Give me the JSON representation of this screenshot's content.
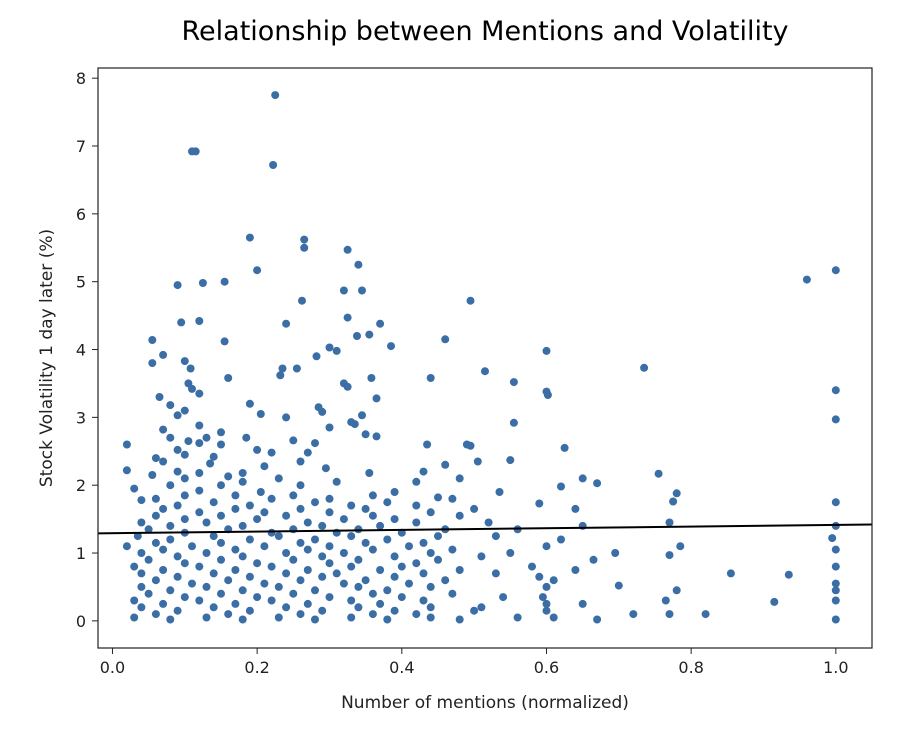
{
  "chart_data": {
    "type": "scatter",
    "title": "Relationship between Mentions and Volatility",
    "xlabel": "Number of mentions (normalized)",
    "ylabel": "Stock Volatility 1 day later (%)",
    "xlim": [
      -0.02,
      1.05
    ],
    "ylim": [
      -0.4,
      8.15
    ],
    "xticks": [
      0.0,
      0.2,
      0.4,
      0.6,
      0.8,
      1.0
    ],
    "xtick_labels": [
      "0.0",
      "0.2",
      "0.4",
      "0.6",
      "0.8",
      "1.0"
    ],
    "yticks": [
      0,
      1,
      2,
      3,
      4,
      5,
      6,
      7,
      8
    ],
    "ytick_labels": [
      "0",
      "1",
      "2",
      "3",
      "4",
      "5",
      "6",
      "7",
      "8"
    ],
    "grid": false,
    "point_color": "#3a6ea5",
    "trendline": {
      "color": "#000000",
      "x": [
        -0.02,
        1.05
      ],
      "y": [
        1.29,
        1.42
      ]
    },
    "points": [
      [
        0.225,
        7.75
      ],
      [
        0.11,
        6.92
      ],
      [
        0.115,
        6.92
      ],
      [
        0.222,
        6.72
      ],
      [
        0.19,
        5.65
      ],
      [
        0.265,
        5.62
      ],
      [
        0.265,
        5.5
      ],
      [
        0.325,
        5.47
      ],
      [
        0.34,
        5.25
      ],
      [
        0.2,
        5.17
      ],
      [
        1.0,
        5.17
      ],
      [
        0.96,
        5.03
      ],
      [
        0.155,
        5.0
      ],
      [
        0.125,
        4.98
      ],
      [
        0.09,
        4.95
      ],
      [
        0.32,
        4.87
      ],
      [
        0.345,
        4.87
      ],
      [
        0.262,
        4.72
      ],
      [
        0.495,
        4.72
      ],
      [
        0.325,
        4.47
      ],
      [
        0.12,
        4.42
      ],
      [
        0.095,
        4.4
      ],
      [
        0.24,
        4.38
      ],
      [
        0.37,
        4.38
      ],
      [
        0.355,
        4.22
      ],
      [
        0.338,
        4.2
      ],
      [
        0.46,
        4.15
      ],
      [
        0.055,
        4.14
      ],
      [
        0.155,
        4.12
      ],
      [
        0.385,
        4.05
      ],
      [
        0.3,
        4.03
      ],
      [
        0.31,
        3.98
      ],
      [
        0.6,
        3.98
      ],
      [
        0.07,
        3.92
      ],
      [
        0.282,
        3.9
      ],
      [
        0.1,
        3.83
      ],
      [
        0.055,
        3.8
      ],
      [
        0.108,
        3.72
      ],
      [
        0.235,
        3.72
      ],
      [
        0.255,
        3.72
      ],
      [
        0.735,
        3.73
      ],
      [
        0.515,
        3.68
      ],
      [
        0.232,
        3.62
      ],
      [
        0.16,
        3.58
      ],
      [
        0.358,
        3.58
      ],
      [
        0.44,
        3.58
      ],
      [
        0.105,
        3.5
      ],
      [
        0.32,
        3.5
      ],
      [
        0.325,
        3.45
      ],
      [
        0.555,
        3.52
      ],
      [
        0.11,
        3.42
      ],
      [
        0.6,
        3.38
      ],
      [
        0.12,
        3.35
      ],
      [
        1.0,
        3.4
      ],
      [
        0.602,
        3.33
      ],
      [
        0.065,
        3.3
      ],
      [
        0.365,
        3.28
      ],
      [
        0.19,
        3.2
      ],
      [
        0.08,
        3.18
      ],
      [
        0.285,
        3.15
      ],
      [
        0.1,
        3.1
      ],
      [
        0.29,
        3.08
      ],
      [
        0.205,
        3.05
      ],
      [
        0.09,
        3.03
      ],
      [
        0.345,
        3.03
      ],
      [
        0.24,
        3.0
      ],
      [
        0.555,
        2.92
      ],
      [
        1.0,
        2.97
      ],
      [
        0.33,
        2.93
      ],
      [
        0.335,
        2.9
      ],
      [
        0.12,
        2.88
      ],
      [
        0.3,
        2.85
      ],
      [
        0.07,
        2.82
      ],
      [
        0.15,
        2.78
      ],
      [
        0.35,
        2.75
      ],
      [
        0.365,
        2.72
      ],
      [
        0.08,
        2.7
      ],
      [
        0.13,
        2.7
      ],
      [
        0.185,
        2.7
      ],
      [
        0.25,
        2.66
      ],
      [
        0.105,
        2.65
      ],
      [
        0.12,
        2.62
      ],
      [
        0.15,
        2.6
      ],
      [
        0.28,
        2.62
      ],
      [
        0.02,
        2.6
      ],
      [
        0.49,
        2.6
      ],
      [
        0.495,
        2.58
      ],
      [
        0.435,
        2.6
      ],
      [
        0.625,
        2.55
      ],
      [
        0.09,
        2.52
      ],
      [
        0.2,
        2.52
      ],
      [
        0.22,
        2.48
      ],
      [
        0.27,
        2.48
      ],
      [
        0.1,
        2.45
      ],
      [
        0.14,
        2.42
      ],
      [
        0.06,
        2.4
      ],
      [
        0.07,
        2.35
      ],
      [
        0.26,
        2.35
      ],
      [
        0.505,
        2.35
      ],
      [
        0.55,
        2.37
      ],
      [
        0.135,
        2.32
      ],
      [
        0.46,
        2.3
      ],
      [
        0.21,
        2.28
      ],
      [
        0.295,
        2.25
      ],
      [
        0.02,
        2.22
      ],
      [
        0.09,
        2.2
      ],
      [
        0.12,
        2.18
      ],
      [
        0.18,
        2.18
      ],
      [
        0.355,
        2.18
      ],
      [
        0.43,
        2.2
      ],
      [
        0.755,
        2.17
      ],
      [
        0.055,
        2.15
      ],
      [
        0.16,
        2.13
      ],
      [
        0.1,
        2.1
      ],
      [
        0.23,
        2.1
      ],
      [
        0.48,
        2.1
      ],
      [
        0.65,
        2.1
      ],
      [
        0.18,
        2.05
      ],
      [
        0.31,
        2.05
      ],
      [
        0.42,
        2.05
      ],
      [
        0.67,
        2.03
      ],
      [
        0.08,
        2.0
      ],
      [
        0.15,
        2.0
      ],
      [
        0.26,
        2.0
      ],
      [
        0.62,
        1.98
      ],
      [
        0.03,
        1.95
      ],
      [
        0.12,
        1.92
      ],
      [
        0.205,
        1.9
      ],
      [
        0.39,
        1.9
      ],
      [
        0.535,
        1.9
      ],
      [
        0.78,
        1.88
      ],
      [
        0.1,
        1.85
      ],
      [
        0.17,
        1.85
      ],
      [
        0.25,
        1.85
      ],
      [
        0.36,
        1.85
      ],
      [
        0.45,
        1.82
      ],
      [
        0.06,
        1.8
      ],
      [
        0.22,
        1.8
      ],
      [
        0.3,
        1.8
      ],
      [
        0.47,
        1.8
      ],
      [
        0.04,
        1.78
      ],
      [
        0.14,
        1.75
      ],
      [
        0.28,
        1.75
      ],
      [
        0.38,
        1.75
      ],
      [
        0.59,
        1.73
      ],
      [
        0.775,
        1.76
      ],
      [
        1.0,
        1.75
      ],
      [
        0.09,
        1.7
      ],
      [
        0.19,
        1.7
      ],
      [
        0.33,
        1.7
      ],
      [
        0.42,
        1.7
      ],
      [
        0.07,
        1.65
      ],
      [
        0.17,
        1.65
      ],
      [
        0.26,
        1.65
      ],
      [
        0.35,
        1.65
      ],
      [
        0.5,
        1.65
      ],
      [
        0.64,
        1.65
      ],
      [
        0.12,
        1.6
      ],
      [
        0.21,
        1.6
      ],
      [
        0.3,
        1.6
      ],
      [
        0.44,
        1.6
      ],
      [
        0.06,
        1.55
      ],
      [
        0.15,
        1.55
      ],
      [
        0.24,
        1.55
      ],
      [
        0.36,
        1.55
      ],
      [
        0.48,
        1.55
      ],
      [
        0.1,
        1.5
      ],
      [
        0.2,
        1.5
      ],
      [
        0.32,
        1.5
      ],
      [
        0.39,
        1.5
      ],
      [
        0.04,
        1.45
      ],
      [
        0.13,
        1.45
      ],
      [
        0.27,
        1.45
      ],
      [
        0.42,
        1.45
      ],
      [
        0.52,
        1.45
      ],
      [
        0.77,
        1.45
      ],
      [
        0.08,
        1.4
      ],
      [
        0.18,
        1.4
      ],
      [
        0.29,
        1.4
      ],
      [
        0.37,
        1.4
      ],
      [
        0.65,
        1.4
      ],
      [
        1.0,
        1.4
      ],
      [
        0.05,
        1.35
      ],
      [
        0.16,
        1.35
      ],
      [
        0.25,
        1.35
      ],
      [
        0.34,
        1.35
      ],
      [
        0.46,
        1.35
      ],
      [
        0.56,
        1.35
      ],
      [
        0.1,
        1.3
      ],
      [
        0.22,
        1.3
      ],
      [
        0.31,
        1.3
      ],
      [
        0.4,
        1.3
      ],
      [
        0.035,
        1.25
      ],
      [
        0.14,
        1.25
      ],
      [
        0.23,
        1.25
      ],
      [
        0.33,
        1.25
      ],
      [
        0.45,
        1.25
      ],
      [
        0.53,
        1.25
      ],
      [
        0.08,
        1.2
      ],
      [
        0.19,
        1.2
      ],
      [
        0.28,
        1.2
      ],
      [
        0.38,
        1.2
      ],
      [
        0.62,
        1.2
      ],
      [
        0.995,
        1.22
      ],
      [
        0.06,
        1.15
      ],
      [
        0.15,
        1.15
      ],
      [
        0.26,
        1.15
      ],
      [
        0.35,
        1.15
      ],
      [
        0.43,
        1.15
      ],
      [
        0.02,
        1.1
      ],
      [
        0.11,
        1.1
      ],
      [
        0.21,
        1.1
      ],
      [
        0.3,
        1.1
      ],
      [
        0.41,
        1.1
      ],
      [
        0.6,
        1.1
      ],
      [
        0.785,
        1.1
      ],
      [
        0.07,
        1.05
      ],
      [
        0.17,
        1.05
      ],
      [
        0.27,
        1.05
      ],
      [
        0.36,
        1.05
      ],
      [
        0.47,
        1.05
      ],
      [
        1.0,
        1.05
      ],
      [
        0.04,
        1.0
      ],
      [
        0.13,
        1.0
      ],
      [
        0.24,
        1.0
      ],
      [
        0.32,
        1.0
      ],
      [
        0.44,
        1.0
      ],
      [
        0.55,
        1.0
      ],
      [
        0.695,
        1.0
      ],
      [
        0.09,
        0.95
      ],
      [
        0.18,
        0.95
      ],
      [
        0.29,
        0.95
      ],
      [
        0.39,
        0.95
      ],
      [
        0.51,
        0.95
      ],
      [
        0.77,
        0.97
      ],
      [
        0.05,
        0.9
      ],
      [
        0.15,
        0.9
      ],
      [
        0.25,
        0.9
      ],
      [
        0.34,
        0.9
      ],
      [
        0.45,
        0.9
      ],
      [
        0.665,
        0.9
      ],
      [
        0.1,
        0.85
      ],
      [
        0.2,
        0.85
      ],
      [
        0.3,
        0.85
      ],
      [
        0.42,
        0.85
      ],
      [
        0.03,
        0.8
      ],
      [
        0.12,
        0.8
      ],
      [
        0.22,
        0.8
      ],
      [
        0.33,
        0.8
      ],
      [
        0.4,
        0.8
      ],
      [
        0.58,
        0.8
      ],
      [
        1.0,
        0.8
      ],
      [
        0.07,
        0.75
      ],
      [
        0.17,
        0.75
      ],
      [
        0.27,
        0.75
      ],
      [
        0.37,
        0.75
      ],
      [
        0.48,
        0.75
      ],
      [
        0.64,
        0.75
      ],
      [
        0.04,
        0.7
      ],
      [
        0.14,
        0.7
      ],
      [
        0.24,
        0.7
      ],
      [
        0.31,
        0.7
      ],
      [
        0.43,
        0.7
      ],
      [
        0.53,
        0.7
      ],
      [
        0.855,
        0.7
      ],
      [
        0.935,
        0.68
      ],
      [
        0.09,
        0.65
      ],
      [
        0.19,
        0.65
      ],
      [
        0.29,
        0.65
      ],
      [
        0.39,
        0.65
      ],
      [
        0.59,
        0.65
      ],
      [
        0.06,
        0.6
      ],
      [
        0.16,
        0.6
      ],
      [
        0.26,
        0.6
      ],
      [
        0.35,
        0.6
      ],
      [
        0.46,
        0.6
      ],
      [
        0.61,
        0.6
      ],
      [
        0.11,
        0.55
      ],
      [
        0.21,
        0.55
      ],
      [
        0.32,
        0.55
      ],
      [
        0.41,
        0.55
      ],
      [
        0.7,
        0.52
      ],
      [
        1.0,
        0.55
      ],
      [
        0.04,
        0.5
      ],
      [
        0.13,
        0.5
      ],
      [
        0.23,
        0.5
      ],
      [
        0.34,
        0.5
      ],
      [
        0.44,
        0.5
      ],
      [
        0.6,
        0.5
      ],
      [
        0.08,
        0.45
      ],
      [
        0.18,
        0.45
      ],
      [
        0.28,
        0.45
      ],
      [
        0.38,
        0.45
      ],
      [
        0.78,
        0.45
      ],
      [
        1.0,
        0.45
      ],
      [
        0.05,
        0.4
      ],
      [
        0.15,
        0.4
      ],
      [
        0.25,
        0.4
      ],
      [
        0.36,
        0.4
      ],
      [
        0.47,
        0.4
      ],
      [
        0.1,
        0.35
      ],
      [
        0.2,
        0.35
      ],
      [
        0.3,
        0.35
      ],
      [
        0.4,
        0.35
      ],
      [
        0.54,
        0.35
      ],
      [
        0.595,
        0.35
      ],
      [
        0.03,
        0.3
      ],
      [
        0.12,
        0.3
      ],
      [
        0.22,
        0.3
      ],
      [
        0.33,
        0.3
      ],
      [
        0.43,
        0.3
      ],
      [
        0.765,
        0.3
      ],
      [
        0.915,
        0.28
      ],
      [
        1.0,
        0.3
      ],
      [
        0.07,
        0.25
      ],
      [
        0.17,
        0.25
      ],
      [
        0.27,
        0.25
      ],
      [
        0.37,
        0.25
      ],
      [
        0.6,
        0.25
      ],
      [
        0.65,
        0.25
      ],
      [
        0.04,
        0.2
      ],
      [
        0.14,
        0.2
      ],
      [
        0.24,
        0.2
      ],
      [
        0.34,
        0.2
      ],
      [
        0.44,
        0.2
      ],
      [
        0.51,
        0.2
      ],
      [
        0.09,
        0.15
      ],
      [
        0.19,
        0.15
      ],
      [
        0.29,
        0.15
      ],
      [
        0.39,
        0.15
      ],
      [
        0.5,
        0.15
      ],
      [
        0.6,
        0.15
      ],
      [
        0.06,
        0.1
      ],
      [
        0.16,
        0.1
      ],
      [
        0.26,
        0.1
      ],
      [
        0.36,
        0.1
      ],
      [
        0.42,
        0.1
      ],
      [
        0.72,
        0.1
      ],
      [
        0.77,
        0.1
      ],
      [
        0.82,
        0.1
      ],
      [
        0.03,
        0.05
      ],
      [
        0.13,
        0.05
      ],
      [
        0.23,
        0.05
      ],
      [
        0.33,
        0.05
      ],
      [
        0.44,
        0.05
      ],
      [
        0.56,
        0.05
      ],
      [
        0.61,
        0.05
      ],
      [
        0.08,
        0.02
      ],
      [
        0.18,
        0.02
      ],
      [
        0.28,
        0.02
      ],
      [
        0.38,
        0.02
      ],
      [
        0.48,
        0.02
      ],
      [
        0.67,
        0.02
      ],
      [
        1.0,
        0.02
      ]
    ]
  }
}
